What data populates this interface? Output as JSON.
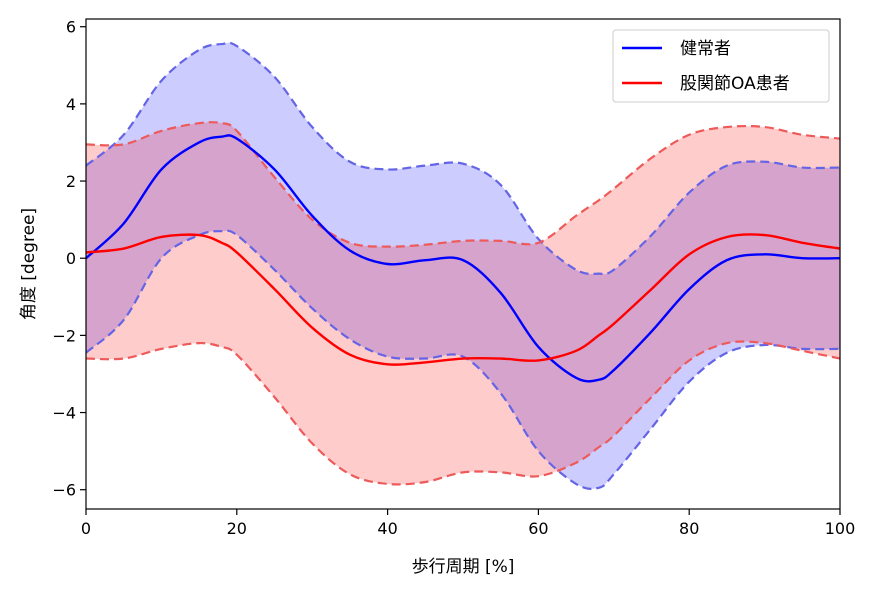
{
  "chart_data": {
    "type": "line",
    "title": "",
    "xlabel": "歩行周期 [%]",
    "ylabel": "角度 [degree]",
    "xlim": [
      0,
      100
    ],
    "ylim": [
      -6.5,
      6.2
    ],
    "xticks": [
      0,
      20,
      40,
      60,
      80,
      100
    ],
    "yticks": [
      -6,
      -4,
      -2,
      0,
      2,
      4,
      6
    ],
    "x": [
      0,
      5,
      10,
      15,
      18,
      20,
      25,
      30,
      35,
      40,
      45,
      50,
      55,
      60,
      65,
      68,
      70,
      75,
      80,
      85,
      90,
      95,
      100
    ],
    "legend_position": "top-right",
    "grid": false,
    "series": [
      {
        "name": "健常者",
        "color": "#0000ff",
        "band_fill": "#ccccff",
        "band_edge": "#6464e6",
        "mean": [
          0.0,
          0.9,
          2.3,
          3.0,
          3.15,
          3.1,
          2.3,
          1.1,
          0.2,
          -0.15,
          -0.05,
          -0.05,
          -0.9,
          -2.3,
          -3.1,
          -3.15,
          -2.9,
          -1.9,
          -0.8,
          -0.05,
          0.1,
          0.0,
          0.0
        ],
        "upper": [
          2.4,
          3.2,
          4.6,
          5.4,
          5.55,
          5.5,
          4.7,
          3.4,
          2.5,
          2.3,
          2.4,
          2.45,
          1.9,
          0.5,
          -0.3,
          -0.4,
          -0.3,
          0.6,
          1.7,
          2.4,
          2.5,
          2.35,
          2.35
        ],
        "lower": [
          -2.45,
          -1.6,
          0.0,
          0.6,
          0.7,
          0.6,
          -0.3,
          -1.3,
          -2.1,
          -2.55,
          -2.6,
          -2.55,
          -3.5,
          -5.0,
          -5.85,
          -5.95,
          -5.6,
          -4.4,
          -3.2,
          -2.45,
          -2.25,
          -2.35,
          -2.35
        ]
      },
      {
        "name": "股関節OA患者",
        "color": "#ff0000",
        "band_fill": "#ffcccc",
        "band_edge": "#ee5a5a",
        "mean": [
          0.15,
          0.25,
          0.55,
          0.6,
          0.4,
          0.15,
          -0.8,
          -1.8,
          -2.5,
          -2.75,
          -2.7,
          -2.6,
          -2.6,
          -2.65,
          -2.4,
          -2.0,
          -1.7,
          -0.8,
          0.1,
          0.55,
          0.6,
          0.4,
          0.25
        ],
        "upper": [
          2.95,
          2.95,
          3.3,
          3.5,
          3.5,
          3.3,
          2.1,
          1.0,
          0.4,
          0.3,
          0.35,
          0.45,
          0.45,
          0.4,
          1.1,
          1.5,
          1.8,
          2.6,
          3.2,
          3.4,
          3.4,
          3.2,
          3.1
        ],
        "lower": [
          -2.6,
          -2.6,
          -2.35,
          -2.2,
          -2.3,
          -2.5,
          -3.6,
          -4.8,
          -5.6,
          -5.85,
          -5.8,
          -5.55,
          -5.55,
          -5.65,
          -5.3,
          -4.9,
          -4.6,
          -3.6,
          -2.65,
          -2.2,
          -2.2,
          -2.4,
          -2.6
        ]
      }
    ]
  }
}
